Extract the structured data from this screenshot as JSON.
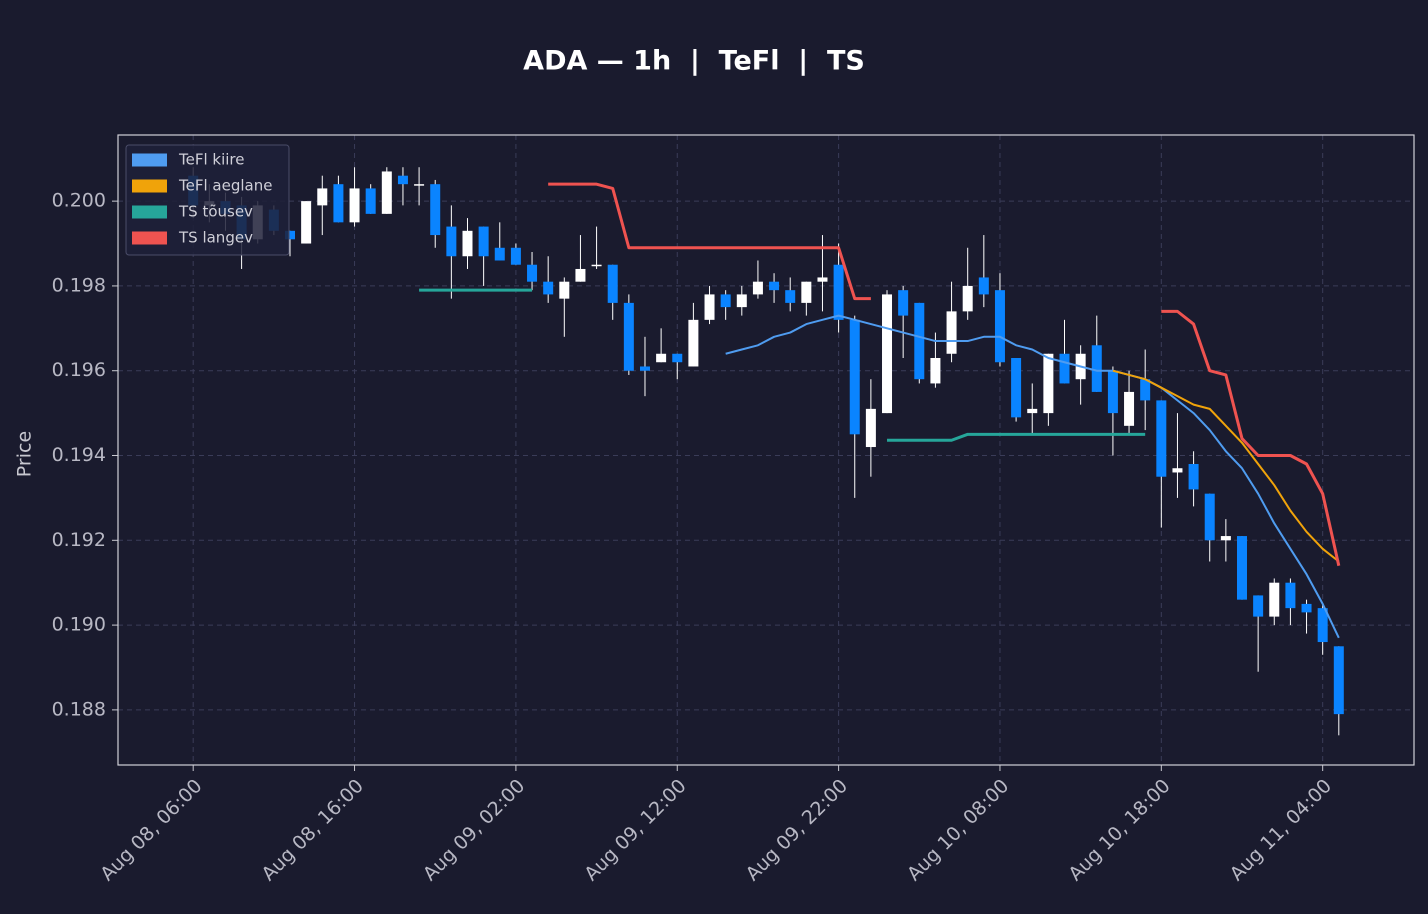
{
  "chart_data": {
    "type": "candlestick",
    "title": "ADA — 1h  |  TeFl  |  TS",
    "y_label": "Price",
    "up_color": "#ffffff",
    "down_color": "#0a84ff",
    "x": [
      "Aug 08, 06:00",
      "Aug 08, 07:00",
      "Aug 08, 08:00",
      "Aug 08, 09:00",
      "Aug 08, 10:00",
      "Aug 08, 11:00",
      "Aug 08, 12:00",
      "Aug 08, 13:00",
      "Aug 08, 14:00",
      "Aug 08, 15:00",
      "Aug 08, 16:00",
      "Aug 08, 17:00",
      "Aug 08, 18:00",
      "Aug 08, 19:00",
      "Aug 08, 20:00",
      "Aug 08, 21:00",
      "Aug 08, 22:00",
      "Aug 08, 23:00",
      "Aug 09, 00:00",
      "Aug 09, 01:00",
      "Aug 09, 02:00",
      "Aug 09, 03:00",
      "Aug 09, 04:00",
      "Aug 09, 05:00",
      "Aug 09, 06:00",
      "Aug 09, 07:00",
      "Aug 09, 08:00",
      "Aug 09, 09:00",
      "Aug 09, 10:00",
      "Aug 09, 11:00",
      "Aug 09, 12:00",
      "Aug 09, 13:00",
      "Aug 09, 14:00",
      "Aug 09, 15:00",
      "Aug 09, 16:00",
      "Aug 09, 17:00",
      "Aug 09, 18:00",
      "Aug 09, 19:00",
      "Aug 09, 20:00",
      "Aug 09, 21:00",
      "Aug 09, 22:00",
      "Aug 09, 23:00",
      "Aug 10, 00:00",
      "Aug 10, 01:00",
      "Aug 10, 02:00",
      "Aug 10, 03:00",
      "Aug 10, 04:00",
      "Aug 10, 05:00",
      "Aug 10, 06:00",
      "Aug 10, 07:00",
      "Aug 10, 08:00",
      "Aug 10, 09:00",
      "Aug 10, 10:00",
      "Aug 10, 11:00",
      "Aug 10, 12:00",
      "Aug 10, 13:00",
      "Aug 10, 14:00",
      "Aug 10, 15:00",
      "Aug 10, 16:00",
      "Aug 10, 17:00",
      "Aug 10, 18:00",
      "Aug 10, 19:00",
      "Aug 10, 20:00",
      "Aug 10, 21:00",
      "Aug 10, 22:00",
      "Aug 10, 23:00",
      "Aug 11, 00:00",
      "Aug 11, 01:00",
      "Aug 11, 02:00",
      "Aug 11, 03:00",
      "Aug 11, 04:00",
      "Aug 11, 05:00"
    ],
    "open": [
      0.2006,
      0.1999,
      0.2,
      0.1999,
      0.1991,
      0.1998,
      0.1993,
      0.199,
      0.1999,
      0.2004,
      0.1995,
      0.2003,
      0.1997,
      0.2006,
      0.2004,
      0.2004,
      0.1994,
      0.1987,
      0.1994,
      0.1989,
      0.1989,
      0.1985,
      0.1981,
      0.1977,
      0.1981,
      0.1985,
      0.1985,
      0.1976,
      0.1961,
      0.1962,
      0.1964,
      0.1961,
      0.1972,
      0.1978,
      0.1975,
      0.1978,
      0.1981,
      0.1979,
      0.1976,
      0.1981,
      0.1985,
      0.1972,
      0.1942,
      0.195,
      0.1979,
      0.1976,
      0.1957,
      0.1964,
      0.1974,
      0.1982,
      0.1979,
      0.1963,
      0.195,
      0.195,
      0.1964,
      0.1958,
      0.1966,
      0.196,
      0.1947,
      0.1958,
      0.1953,
      0.1936,
      0.1938,
      0.1931,
      0.192,
      0.1921,
      0.1907,
      0.1902,
      0.191,
      0.1905,
      0.1904,
      0.1895
    ],
    "high": [
      0.2008,
      0.2004,
      0.2002,
      0.2001,
      0.2,
      0.1999,
      0.1993,
      0.2,
      0.2006,
      0.2006,
      0.2008,
      0.2004,
      0.2008,
      0.2008,
      0.2008,
      0.2005,
      0.1999,
      0.1996,
      0.1994,
      0.1995,
      0.199,
      0.1988,
      0.1987,
      0.1982,
      0.1992,
      0.1994,
      0.1985,
      0.1978,
      0.1968,
      0.197,
      0.1964,
      0.1976,
      0.198,
      0.1979,
      0.198,
      0.1986,
      0.1983,
      0.1982,
      0.1981,
      0.1992,
      0.199,
      0.1973,
      0.1958,
      0.1979,
      0.198,
      0.1976,
      0.1969,
      0.1981,
      0.1989,
      0.1992,
      0.1983,
      0.1963,
      0.1957,
      0.1964,
      0.1972,
      0.1966,
      0.1973,
      0.1961,
      0.196,
      0.1965,
      0.1953,
      0.195,
      0.1941,
      0.1931,
      0.1925,
      0.1921,
      0.1907,
      0.1911,
      0.1911,
      0.1906,
      0.1905,
      0.1895
    ],
    "low": [
      0.1996,
      0.1995,
      0.1993,
      0.1984,
      0.199,
      0.1992,
      0.1987,
      0.199,
      0.1992,
      0.1995,
      0.1994,
      0.1997,
      0.1997,
      0.1999,
      0.1999,
      0.1989,
      0.1977,
      0.1984,
      0.198,
      0.1986,
      0.1985,
      0.1979,
      0.1976,
      0.1968,
      0.1981,
      0.1984,
      0.1972,
      0.1959,
      0.1954,
      0.1962,
      0.1958,
      0.1961,
      0.1971,
      0.1972,
      0.1973,
      0.1977,
      0.1976,
      0.1974,
      0.1973,
      0.1974,
      0.1969,
      0.193,
      0.1935,
      0.195,
      0.1963,
      0.1957,
      0.1956,
      0.1962,
      0.1972,
      0.1975,
      0.1961,
      0.1948,
      0.1945,
      0.1947,
      0.1957,
      0.1952,
      0.1955,
      0.194,
      0.1945,
      0.1946,
      0.1923,
      0.193,
      0.1928,
      0.1915,
      0.1915,
      0.1906,
      0.1889,
      0.19,
      0.19,
      0.1898,
      0.1893,
      0.1874
    ],
    "close": [
      0.1999,
      0.2,
      0.1997,
      0.1991,
      0.1999,
      0.1993,
      0.1991,
      0.2,
      0.2003,
      0.1995,
      0.2003,
      0.1997,
      0.2007,
      0.2004,
      0.2004,
      0.1992,
      0.1987,
      0.1993,
      0.1987,
      0.1986,
      0.1985,
      0.1981,
      0.1978,
      0.1981,
      0.1984,
      0.1985,
      0.1976,
      0.196,
      0.196,
      0.1964,
      0.1962,
      0.1972,
      0.1978,
      0.1975,
      0.1978,
      0.1981,
      0.1979,
      0.1976,
      0.1981,
      0.1982,
      0.1972,
      0.1945,
      0.1951,
      0.1978,
      0.1973,
      0.1958,
      0.1963,
      0.1974,
      0.198,
      0.1978,
      0.1962,
      0.1949,
      0.1951,
      0.1964,
      0.1957,
      0.1964,
      0.1955,
      0.195,
      0.1955,
      0.1953,
      0.1935,
      0.1937,
      0.1932,
      0.192,
      0.1921,
      0.1906,
      0.1902,
      0.191,
      0.1904,
      0.1903,
      0.1896,
      0.1879
    ],
    "series": [
      {
        "name": "TeFl kiire",
        "color": "#4f9cf0",
        "values": [
          null,
          null,
          null,
          null,
          null,
          null,
          null,
          null,
          null,
          null,
          null,
          null,
          null,
          null,
          null,
          null,
          null,
          null,
          null,
          null,
          null,
          null,
          null,
          null,
          null,
          null,
          null,
          null,
          null,
          null,
          null,
          null,
          null,
          0.1964,
          0.1965,
          0.1966,
          0.1968,
          0.1969,
          0.1971,
          0.1972,
          0.1973,
          0.1972,
          0.1971,
          0.197,
          0.1969,
          0.1968,
          0.1967,
          0.1967,
          0.1967,
          0.1968,
          0.1968,
          0.1966,
          0.1965,
          0.1963,
          0.1962,
          0.1961,
          0.196,
          0.196,
          0.1959,
          0.1958,
          0.1956,
          0.1953,
          0.195,
          0.1946,
          0.1941,
          0.1937,
          0.1931,
          0.1924,
          0.1918,
          0.1912,
          0.1905,
          0.1897
        ]
      },
      {
        "name": "TeFl aeglane",
        "color": "#f0a30a",
        "values": [
          null,
          null,
          null,
          null,
          null,
          null,
          null,
          null,
          null,
          null,
          null,
          null,
          null,
          null,
          null,
          null,
          null,
          null,
          null,
          null,
          null,
          null,
          null,
          null,
          null,
          null,
          null,
          null,
          null,
          null,
          null,
          null,
          null,
          null,
          null,
          null,
          null,
          null,
          null,
          null,
          null,
          null,
          null,
          null,
          null,
          null,
          null,
          null,
          null,
          null,
          null,
          null,
          null,
          null,
          null,
          null,
          null,
          0.196,
          0.1959,
          0.1958,
          0.1956,
          0.1954,
          0.1952,
          0.1951,
          0.1947,
          0.1943,
          0.1938,
          0.1933,
          0.1927,
          0.1922,
          0.1918,
          0.1915
        ]
      },
      {
        "name": "TS tõusev",
        "color": "#26a69a",
        "values": [
          null,
          null,
          null,
          null,
          null,
          null,
          null,
          null,
          null,
          null,
          null,
          null,
          null,
          null,
          0.1979,
          0.1979,
          0.1979,
          0.1979,
          0.1979,
          0.1979,
          0.1979,
          0.1979,
          null,
          null,
          null,
          null,
          null,
          null,
          null,
          null,
          null,
          null,
          null,
          null,
          null,
          null,
          null,
          null,
          null,
          null,
          null,
          null,
          null,
          0.19436,
          0.19436,
          0.19436,
          0.19436,
          0.19436,
          0.1945,
          0.1945,
          0.1945,
          0.1945,
          0.1945,
          0.1945,
          0.1945,
          0.1945,
          0.1945,
          0.1945,
          0.1945,
          0.1945,
          null,
          null,
          null,
          null,
          null,
          null,
          null,
          null,
          null,
          null,
          null,
          null
        ]
      },
      {
        "name": "TS langev",
        "color": "#ef5350",
        "values": [
          null,
          null,
          null,
          null,
          null,
          null,
          null,
          null,
          null,
          null,
          null,
          null,
          null,
          null,
          null,
          null,
          null,
          null,
          null,
          null,
          null,
          null,
          0.2004,
          0.2004,
          0.2004,
          0.2004,
          0.2003,
          0.1989,
          0.1989,
          0.1989,
          0.1989,
          0.1989,
          0.1989,
          0.1989,
          0.1989,
          0.1989,
          0.1989,
          0.1989,
          0.1989,
          0.1989,
          0.1989,
          0.1977,
          0.1977,
          null,
          null,
          null,
          null,
          null,
          null,
          null,
          null,
          null,
          null,
          null,
          null,
          null,
          null,
          null,
          null,
          null,
          0.1974,
          0.1974,
          0.1971,
          0.196,
          0.1959,
          0.1944,
          0.194,
          0.194,
          0.194,
          0.1938,
          0.1931,
          0.1914
        ]
      }
    ],
    "ylim": [
      0.1867,
      0.20156
    ],
    "yticks": [
      0.188,
      {
        "value": 0.19,
        "label": "0.190"
      },
      0.192,
      0.194,
      0.196,
      0.198,
      {
        "value": 0.2,
        "label": "0.200"
      }
    ],
    "xticks": [
      "Aug 08, 06:00",
      "Aug 08, 16:00",
      "Aug 09, 02:00",
      "Aug 09, 12:00",
      "Aug 09, 22:00",
      "Aug 10, 08:00",
      "Aug 10, 18:00",
      "Aug 11, 04:00"
    ],
    "grid": true,
    "legend": "upper left"
  }
}
